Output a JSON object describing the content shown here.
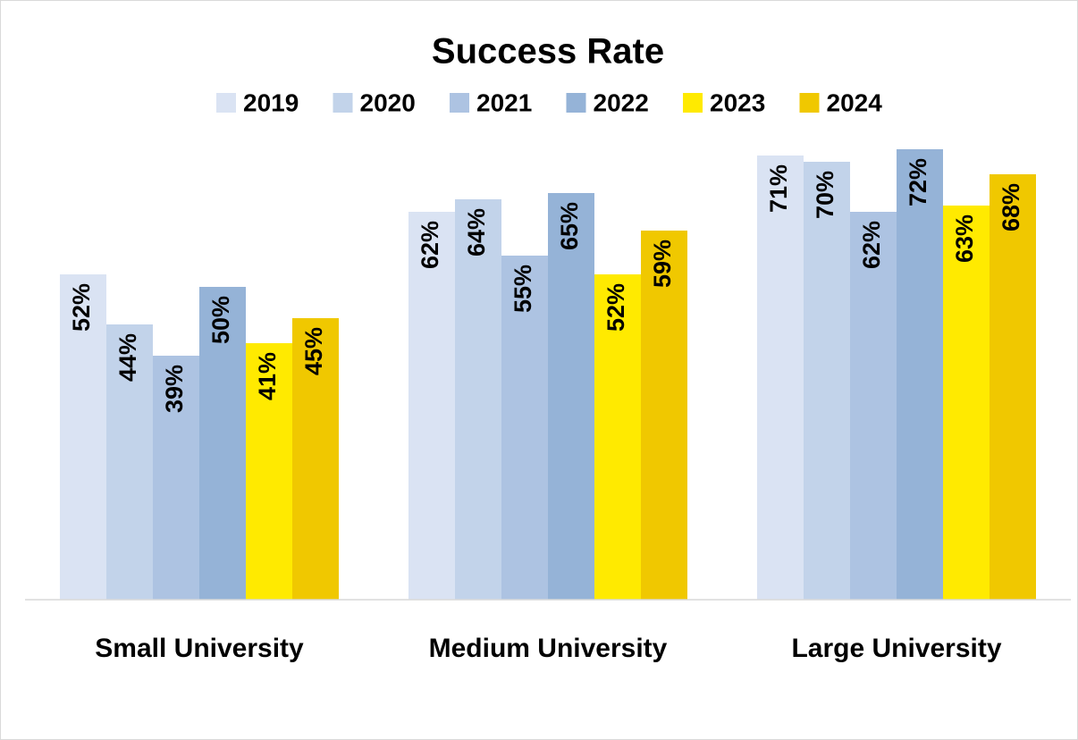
{
  "chart_data": {
    "type": "bar",
    "title": "Success Rate",
    "categories": [
      "Small University",
      "Medium University",
      "Large University"
    ],
    "series": [
      {
        "name": "2019",
        "color": "#dae3f3",
        "values": [
          52,
          62,
          71
        ],
        "value_labels": [
          "52%",
          "62%",
          "71%"
        ]
      },
      {
        "name": "2020",
        "color": "#c2d3ea",
        "values": [
          44,
          64,
          70
        ],
        "value_labels": [
          "44%",
          "64%",
          "70%"
        ]
      },
      {
        "name": "2021",
        "color": "#adc3e2",
        "values": [
          39,
          55,
          62
        ],
        "value_labels": [
          "39%",
          "55%",
          "62%"
        ]
      },
      {
        "name": "2022",
        "color": "#95b3d7",
        "values": [
          50,
          65,
          72
        ],
        "value_labels": [
          "50%",
          "65%",
          "72%"
        ]
      },
      {
        "name": "2023",
        "color": "#ffea00",
        "values": [
          41,
          52,
          63
        ],
        "value_labels": [
          "41%",
          "52%",
          "63%"
        ]
      },
      {
        "name": "2024",
        "color": "#f0c800",
        "values": [
          45,
          59,
          68
        ],
        "value_labels": [
          "45%",
          "59%",
          "68%"
        ]
      }
    ],
    "ylim": [
      0,
      80
    ],
    "legend": "top",
    "grid": false
  }
}
